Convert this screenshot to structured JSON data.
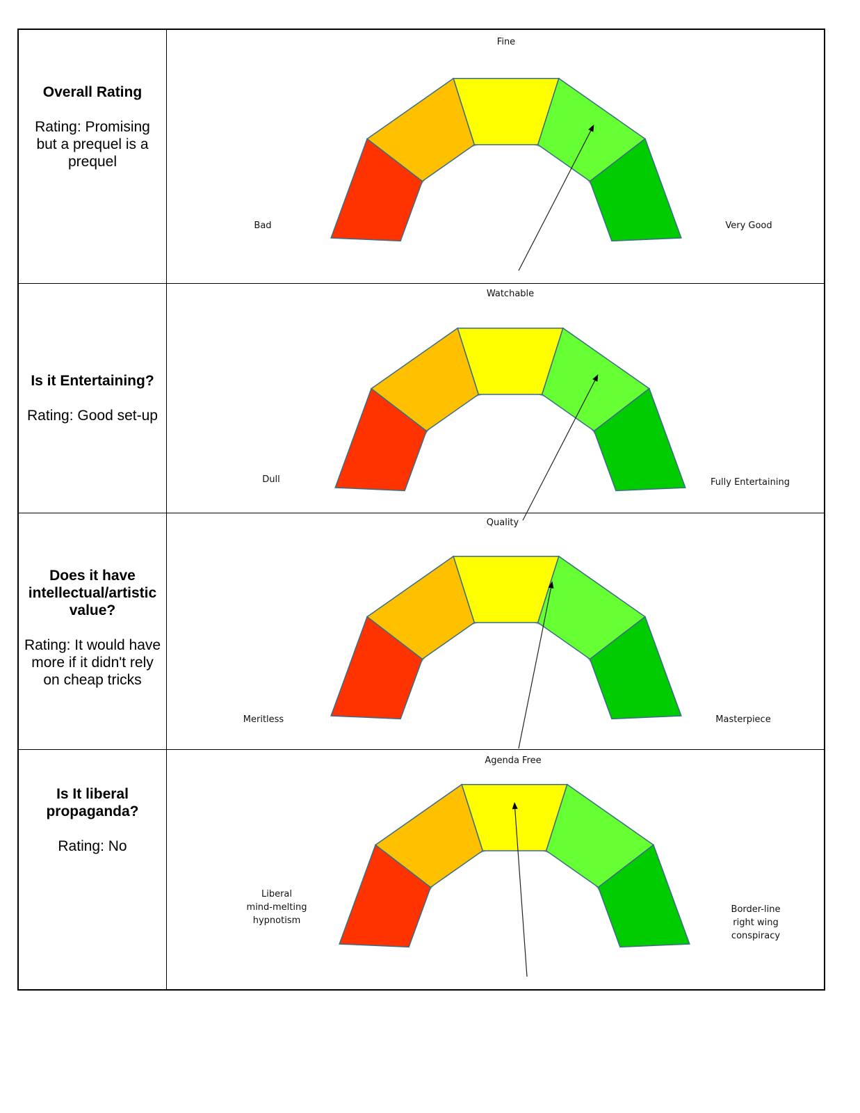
{
  "colors": {
    "bad": "#ff3300",
    "poor": "#ffc000",
    "middle": "#ffff00",
    "good": "#66ff33",
    "best": "#00cc00",
    "arc": "#a6a6a6",
    "segment_stroke": "#3a6c88"
  },
  "rows": [
    {
      "title": "Overall Rating",
      "rating": "Rating: Promising but a prequel is a prequel",
      "gauge": {
        "left_label": "Bad",
        "top_label": "Fine",
        "right_label": "Very Good",
        "needle_value": 0.7
      }
    },
    {
      "title": "Is it Entertaining?",
      "rating": "Rating: Good set-up",
      "gauge": {
        "left_label": "Dull",
        "top_label": "Watchable",
        "right_label": "Fully Entertaining",
        "needle_value": 0.7
      }
    },
    {
      "title": "Does it have intellectual/artistic value?",
      "rating": "Rating:  It would have more if it didn't rely on cheap tricks",
      "gauge": {
        "left_label": "Meritless",
        "top_label": "Quality",
        "right_label": "Masterpiece",
        "needle_value": 0.6
      }
    },
    {
      "title": "Is It liberal propaganda?",
      "rating": "Rating: No",
      "gauge": {
        "left_label": "Liberal mind-melting hypnotism",
        "top_label": "Agenda Free",
        "right_label": "Border-line right wing conspiracy",
        "needle_value": 0.5
      }
    }
  ]
}
